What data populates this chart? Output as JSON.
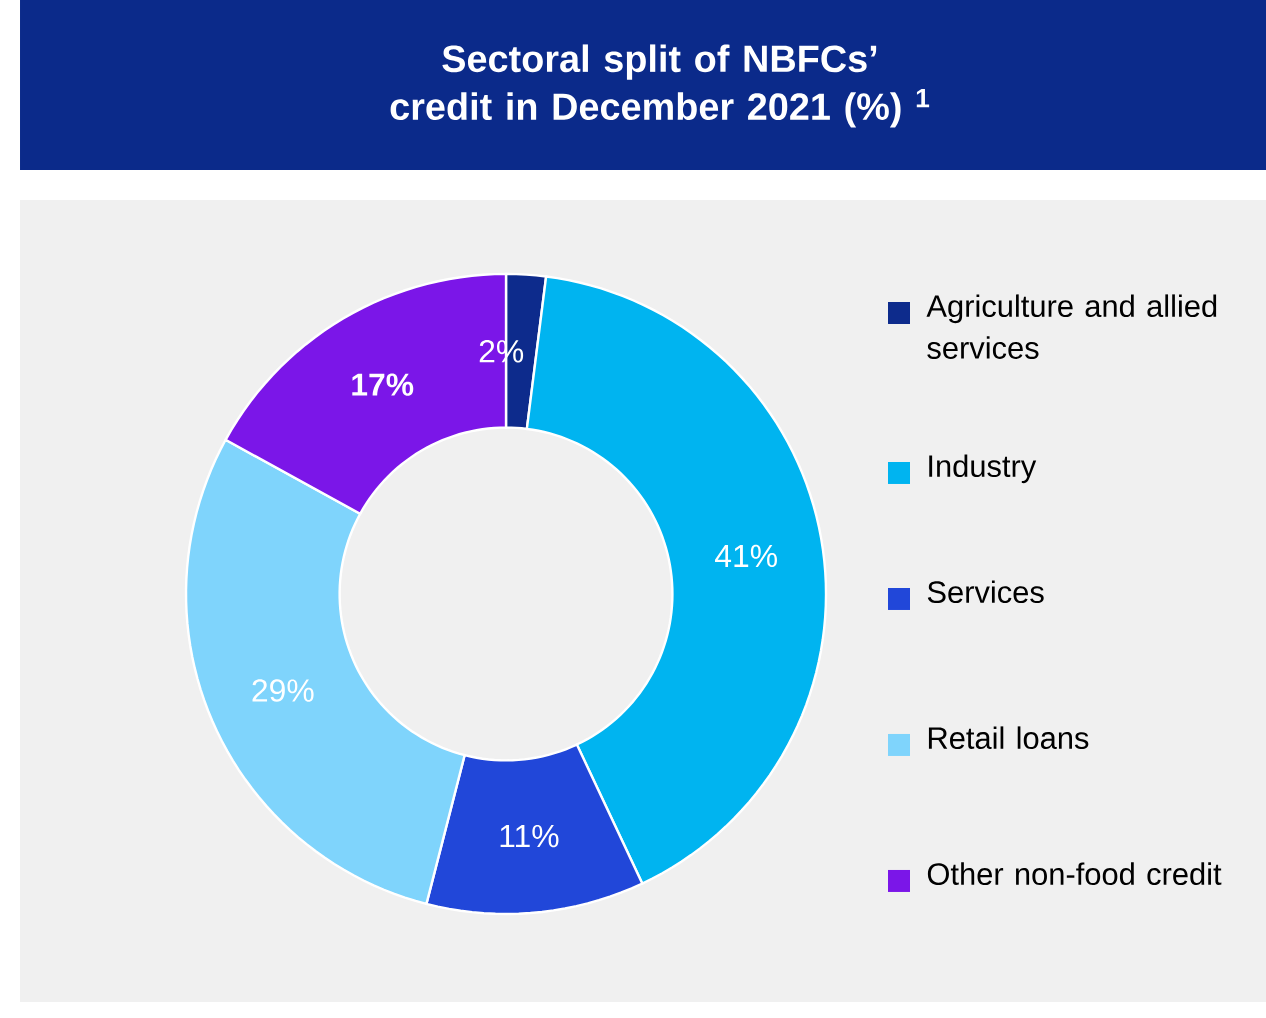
{
  "chart_data": {
    "type": "donut",
    "title": "Sectoral split of NBFCs’ credit in December 2021 (%) $^{1}$",
    "categories": [
      "Agriculture and allied services",
      "Industry",
      "Services",
      "Retail loans",
      "Other non-food credit"
    ],
    "values": [
      2,
      41,
      11,
      29,
      17
    ],
    "colors": [
      "#0d2b8c",
      "#00b4f0",
      "#2147d9",
      "#7fd4fc",
      "#7b16e8"
    ],
    "value_labels": [
      "2%",
      "41%",
      "11%",
      "29%",
      "17%"
    ],
    "legend": "right"
  }
}
